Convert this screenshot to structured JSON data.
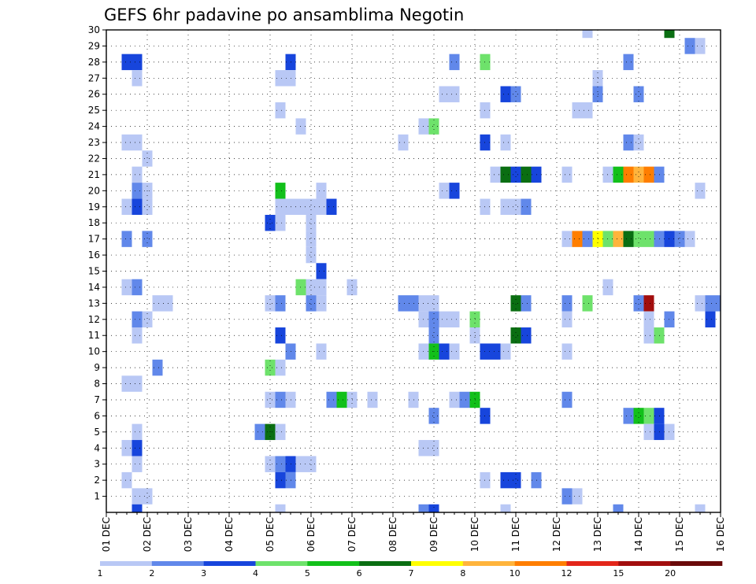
{
  "chart_data": {
    "type": "heatmap",
    "title": "GEFS 6hr padavine po ansamblima Negotin",
    "xlabel": "",
    "ylabel": "",
    "x_tick_labels": [
      "01 DEC",
      "02 DEC",
      "03 DEC",
      "04 DEC",
      "05 DEC",
      "06 DEC",
      "07 DEC",
      "08 DEC",
      "09 DEC",
      "10 DEC",
      "11 DEC",
      "12 DEC",
      "13 DEC",
      "14 DEC",
      "15 DEC",
      "16 DEC"
    ],
    "y_tick_labels": [
      "1",
      "2",
      "3",
      "4",
      "5",
      "6",
      "7",
      "8",
      "9",
      "10",
      "11",
      "12",
      "13",
      "14",
      "15",
      "16",
      "17",
      "18",
      "19",
      "20",
      "21",
      "22",
      "23",
      "24",
      "25",
      "26",
      "27",
      "28",
      "29",
      "30"
    ],
    "xlim": [
      0,
      15
    ],
    "ylim": [
      0,
      30
    ],
    "time_step_days": 0.25,
    "grid": true,
    "colorbar": {
      "levels": [
        "1",
        "2",
        "3",
        "4",
        "5",
        "6",
        "7",
        "8",
        "10",
        "12",
        "15",
        "20"
      ],
      "colors": [
        "#b9c8f5",
        "#6188ea",
        "#1745dc",
        "#6ee26b",
        "#12c01a",
        "#0a6e12",
        "#ffff00",
        "#ffb43c",
        "#ff7e00",
        "#e3261a",
        "#a20e0e",
        "#6a0a0a"
      ]
    },
    "cells": [
      [
        30,
        11.75,
        1
      ],
      [
        30,
        13.75,
        6
      ],
      [
        30,
        15.75,
        6
      ],
      [
        29,
        14.25,
        2
      ],
      [
        29,
        14.5,
        1
      ],
      [
        29,
        15.75,
        1
      ],
      [
        28,
        0.5,
        3
      ],
      [
        28,
        0.75,
        3
      ],
      [
        28,
        4.5,
        3
      ],
      [
        28,
        8.5,
        2
      ],
      [
        28,
        9.25,
        4
      ],
      [
        28,
        12.75,
        2
      ],
      [
        28,
        15.5,
        1
      ],
      [
        28,
        15.75,
        2
      ],
      [
        28,
        16,
        10
      ],
      [
        28,
        16.25,
        9
      ],
      [
        27,
        0.75,
        1
      ],
      [
        27,
        4.25,
        1
      ],
      [
        27,
        4.5,
        1
      ],
      [
        27,
        12,
        1
      ],
      [
        27,
        15.5,
        1
      ],
      [
        27,
        16,
        2
      ],
      [
        27,
        16.25,
        1
      ],
      [
        26,
        8.25,
        1
      ],
      [
        26,
        8.5,
        1
      ],
      [
        26,
        9.75,
        3
      ],
      [
        26,
        10,
        2
      ],
      [
        26,
        12,
        2
      ],
      [
        26,
        13,
        2
      ],
      [
        25,
        4.25,
        1
      ],
      [
        25,
        9.25,
        1
      ],
      [
        25,
        11.5,
        1
      ],
      [
        25,
        11.75,
        1
      ],
      [
        24,
        4.75,
        1
      ],
      [
        24,
        7.75,
        1
      ],
      [
        24,
        8,
        4
      ],
      [
        24,
        15.75,
        1
      ],
      [
        24,
        16,
        1
      ],
      [
        24,
        16.25,
        3
      ],
      [
        23,
        0.5,
        1
      ],
      [
        23,
        0.75,
        1
      ],
      [
        23,
        7.25,
        1
      ],
      [
        23,
        9.25,
        3
      ],
      [
        23,
        9.75,
        1
      ],
      [
        23,
        12.75,
        2
      ],
      [
        23,
        13,
        1
      ],
      [
        22,
        1,
        1
      ],
      [
        21,
        0.75,
        1
      ],
      [
        21,
        9.5,
        1
      ],
      [
        21,
        9.75,
        6
      ],
      [
        21,
        10,
        3
      ],
      [
        21,
        10.25,
        6
      ],
      [
        21,
        10.5,
        3
      ],
      [
        21,
        11.25,
        1
      ],
      [
        21,
        12.25,
        1
      ],
      [
        21,
        12.5,
        5
      ],
      [
        21,
        12.75,
        9
      ],
      [
        21,
        13,
        8
      ],
      [
        21,
        13.25,
        9
      ],
      [
        21,
        13.5,
        2
      ],
      [
        20,
        0.75,
        2
      ],
      [
        20,
        1,
        1
      ],
      [
        20,
        4.25,
        5
      ],
      [
        20,
        5.25,
        1
      ],
      [
        20,
        8.25,
        1
      ],
      [
        20,
        8.5,
        3
      ],
      [
        20,
        14.5,
        1
      ],
      [
        20,
        15.5,
        3
      ],
      [
        20,
        15.75,
        2
      ],
      [
        19,
        0.5,
        1
      ],
      [
        19,
        0.75,
        3
      ],
      [
        19,
        1,
        1
      ],
      [
        19,
        4.25,
        1
      ],
      [
        19,
        4.5,
        1
      ],
      [
        19,
        4.75,
        1
      ],
      [
        19,
        5,
        1
      ],
      [
        19,
        5.25,
        1
      ],
      [
        19,
        5.5,
        3
      ],
      [
        19,
        9.25,
        1
      ],
      [
        19,
        9.75,
        1
      ],
      [
        19,
        10,
        1
      ],
      [
        19,
        10.25,
        2
      ],
      [
        19,
        16.25,
        2
      ],
      [
        18,
        4,
        3
      ],
      [
        18,
        4.25,
        1
      ],
      [
        18,
        5,
        1
      ],
      [
        17,
        0.5,
        2
      ],
      [
        17,
        1,
        2
      ],
      [
        17,
        5,
        1
      ],
      [
        17,
        11.25,
        1
      ],
      [
        17,
        11.5,
        9
      ],
      [
        17,
        11.75,
        2
      ],
      [
        17,
        12,
        7
      ],
      [
        17,
        12.25,
        4
      ],
      [
        17,
        12.5,
        8
      ],
      [
        17,
        12.75,
        6
      ],
      [
        17,
        13,
        4
      ],
      [
        17,
        13.25,
        4
      ],
      [
        17,
        13.5,
        2
      ],
      [
        17,
        13.75,
        3
      ],
      [
        17,
        14,
        2
      ],
      [
        17,
        14.25,
        1
      ],
      [
        16,
        5,
        1
      ],
      [
        15,
        5.25,
        3
      ],
      [
        14,
        0.5,
        1
      ],
      [
        14,
        0.75,
        2
      ],
      [
        14,
        4.75,
        4
      ],
      [
        14,
        5,
        1
      ],
      [
        14,
        5.25,
        1
      ],
      [
        14,
        6,
        1
      ],
      [
        14,
        12.25,
        1
      ],
      [
        14,
        16,
        2
      ],
      [
        13,
        1.25,
        1
      ],
      [
        13,
        1.5,
        1
      ],
      [
        13,
        4,
        1
      ],
      [
        13,
        4.25,
        2
      ],
      [
        13,
        5,
        2
      ],
      [
        13,
        5.25,
        1
      ],
      [
        13,
        7.25,
        2
      ],
      [
        13,
        7.5,
        2
      ],
      [
        13,
        7.75,
        1
      ],
      [
        13,
        8,
        1
      ],
      [
        13,
        10,
        6
      ],
      [
        13,
        10.25,
        2
      ],
      [
        13,
        11.25,
        2
      ],
      [
        13,
        11.75,
        4
      ],
      [
        13,
        13,
        2
      ],
      [
        13,
        13.25,
        11
      ],
      [
        13,
        14.5,
        1
      ],
      [
        13,
        14.75,
        2
      ],
      [
        13,
        15,
        2
      ],
      [
        12,
        0.75,
        2
      ],
      [
        12,
        1,
        1
      ],
      [
        12,
        7.75,
        1
      ],
      [
        12,
        8,
        2
      ],
      [
        12,
        8.25,
        1
      ],
      [
        12,
        8.5,
        1
      ],
      [
        12,
        9,
        4
      ],
      [
        12,
        11.25,
        1
      ],
      [
        12,
        13.25,
        1
      ],
      [
        12,
        13.75,
        2
      ],
      [
        12,
        14.75,
        3
      ],
      [
        11,
        0.75,
        1
      ],
      [
        11,
        4.25,
        3
      ],
      [
        11,
        8,
        2
      ],
      [
        11,
        9,
        1
      ],
      [
        11,
        10,
        6
      ],
      [
        11,
        10.25,
        3
      ],
      [
        11,
        13.25,
        1
      ],
      [
        11,
        13.5,
        4
      ],
      [
        10,
        4.5,
        2
      ],
      [
        10,
        5.25,
        1
      ],
      [
        10,
        7.75,
        1
      ],
      [
        10,
        8,
        5
      ],
      [
        10,
        8.25,
        3
      ],
      [
        10,
        8.5,
        1
      ],
      [
        10,
        9.25,
        3
      ],
      [
        10,
        9.5,
        3
      ],
      [
        10,
        9.75,
        1
      ],
      [
        10,
        11.25,
        1
      ],
      [
        9,
        1.25,
        2
      ],
      [
        9,
        4,
        4
      ],
      [
        9,
        4.25,
        1
      ],
      [
        9,
        16.25,
        5
      ],
      [
        8,
        0.5,
        1
      ],
      [
        8,
        0.75,
        1
      ],
      [
        7,
        4,
        1
      ],
      [
        7,
        4.25,
        2
      ],
      [
        7,
        4.5,
        1
      ],
      [
        7,
        5.5,
        2
      ],
      [
        7,
        5.75,
        5
      ],
      [
        7,
        6,
        1
      ],
      [
        7,
        6.5,
        1
      ],
      [
        7,
        7.5,
        1
      ],
      [
        7,
        8.5,
        1
      ],
      [
        7,
        8.75,
        2
      ],
      [
        7,
        9,
        5
      ],
      [
        7,
        11.25,
        2
      ],
      [
        6,
        8,
        2
      ],
      [
        6,
        9.25,
        3
      ],
      [
        6,
        12.75,
        2
      ],
      [
        6,
        13,
        5
      ],
      [
        6,
        13.25,
        4
      ],
      [
        6,
        13.5,
        3
      ],
      [
        5,
        0.75,
        1
      ],
      [
        5,
        3.75,
        2
      ],
      [
        5,
        4,
        6
      ],
      [
        5,
        4.25,
        1
      ],
      [
        5,
        13.25,
        1
      ],
      [
        5,
        13.5,
        3
      ],
      [
        5,
        13.75,
        1
      ],
      [
        4,
        0.5,
        1
      ],
      [
        4,
        0.75,
        3
      ],
      [
        4,
        7.75,
        1
      ],
      [
        4,
        8,
        1
      ],
      [
        3,
        0.75,
        1
      ],
      [
        3,
        4,
        1
      ],
      [
        3,
        4.25,
        2
      ],
      [
        3,
        4.5,
        3
      ],
      [
        3,
        4.75,
        1
      ],
      [
        3,
        5,
        1
      ],
      [
        2,
        0.5,
        1
      ],
      [
        2,
        4.25,
        3
      ],
      [
        2,
        4.5,
        2
      ],
      [
        2,
        9.25,
        1
      ],
      [
        2,
        9.75,
        3
      ],
      [
        2,
        10,
        3
      ],
      [
        2,
        10.5,
        2
      ],
      [
        1,
        0.75,
        1
      ],
      [
        1,
        1,
        1
      ],
      [
        1,
        11.25,
        2
      ],
      [
        1,
        11.5,
        1
      ],
      [
        1,
        15.5,
        2
      ],
      [
        1,
        15.75,
        2
      ],
      [
        0,
        0.75,
        3
      ],
      [
        0,
        4.25,
        1
      ],
      [
        0,
        7.75,
        2
      ],
      [
        0,
        8,
        3
      ],
      [
        0,
        9.75,
        1
      ],
      [
        0,
        12.5,
        2
      ],
      [
        0,
        14.5,
        1
      ],
      [
        0,
        15.75,
        1
      ]
    ]
  }
}
